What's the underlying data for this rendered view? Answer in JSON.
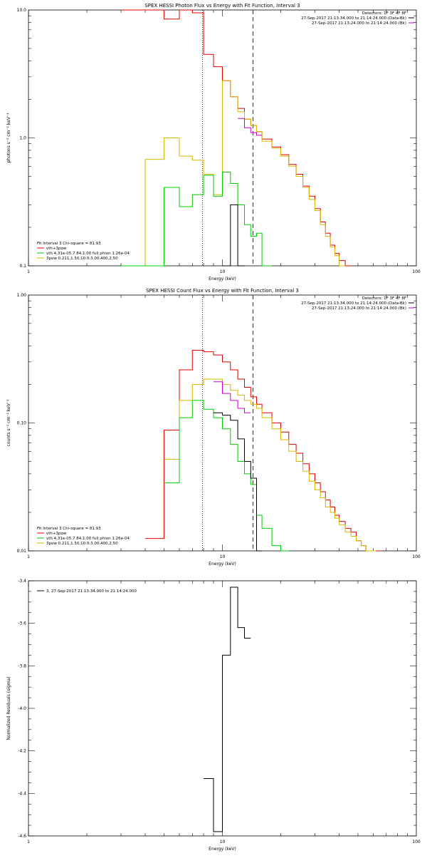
{
  "chart_data": [
    {
      "type": "line",
      "title": "SPEX HESSI Photon Flux vs Energy with Fit Function, Interval 3",
      "xlabel": "Energy (keV)",
      "ylabel": "photons s⁻¹ cm⁻² keV⁻¹",
      "xscale": "log",
      "yscale": "log",
      "xlim": [
        1,
        100
      ],
      "ylim": [
        0.1,
        10
      ],
      "xticks": [
        {
          "v": 1,
          "label": "1"
        },
        {
          "v": 10,
          "label": "10"
        },
        {
          "v": 100,
          "label": "100"
        }
      ],
      "yticks": [
        {
          "v": 0.1,
          "label": "0.1"
        },
        {
          "v": 1,
          "label": "1.0"
        },
        {
          "v": 10,
          "label": "10.0"
        }
      ],
      "header": [
        "Detectors: 1F 3F 4F 8F",
        "27-Sep-2017 21:13:34.000 to 21:14:24.000 (Data-Bk)",
        "27-Sep-2017 21:13:24.000 to 21:14:24.000 (Bk)"
      ],
      "header_colors": [
        "",
        "#000000",
        "#cc00cc"
      ],
      "fit_label": "Fit Interval 3   Chi-square = 81.93",
      "legend": [
        {
          "label": "vth+3pow",
          "color": "#e00000"
        },
        {
          "label": "vth 4.31e-05,7.84,1.00  full phlon 1.26e-04",
          "color": "#00cc00"
        },
        {
          "label": "3pow 0.211,1.50,10.0,3.00,400,2.50",
          "color": "#d8b800"
        }
      ],
      "vlines": [
        {
          "x": 7.9,
          "style": "dotted"
        },
        {
          "x": 14.4,
          "style": "dashed"
        }
      ],
      "edges": [
        1,
        2,
        3,
        4,
        5,
        6,
        7,
        8,
        9,
        10,
        11,
        12,
        13,
        14,
        15,
        16,
        18,
        20,
        22,
        24,
        26,
        28,
        30,
        32,
        34,
        36,
        38,
        40,
        43,
        46,
        49,
        52,
        55,
        58
      ],
      "series": [
        {
          "color": "#e00000",
          "start": 3,
          "values": [
            10,
            10,
            8.5,
            10,
            9.5,
            4.5,
            3.6,
            2.8,
            2.1,
            1.7,
            1.4,
            1.25,
            1.12,
            0.98,
            0.85,
            0.74,
            0.62,
            0.52,
            0.42,
            0.35,
            0.28,
            0.22,
            0.18,
            0.145,
            0.125,
            0.11,
            0.1
          ]
        },
        {
          "color": "#d8b800",
          "start": 3,
          "values": [
            0.1,
            0.68,
            1.0,
            0.72,
            0.67,
            0.52,
            0.36,
            2.8,
            2.1,
            1.6,
            1.4,
            1.25,
            1.12,
            0.94,
            0.83,
            0.72,
            0.6,
            0.5,
            0.41,
            0.33,
            0.27,
            0.21,
            0.17,
            0.14,
            0.12,
            0.1
          ]
        },
        {
          "color": "#00cc00",
          "start": 3,
          "values": [
            0.1,
            0.1,
            0.41,
            0.29,
            0.36,
            0.51,
            0.35,
            0.54,
            0.44,
            0.3,
            0.21,
            0.17,
            0.18,
            0.1
          ]
        },
        {
          "color": "#000000",
          "start": 10,
          "values": [
            0.1,
            0.3,
            0.1
          ]
        },
        {
          "color": "#cc00cc",
          "start": 12,
          "values": [
            1.42,
            1.2,
            1.1,
            1.05
          ]
        }
      ]
    },
    {
      "type": "line",
      "title": "SPEX HESSI Count Flux vs Energy with Fit Function, Interval 3",
      "xlabel": "Energy (keV)",
      "ylabel": "counts s⁻¹ cm⁻² keV⁻¹",
      "xscale": "log",
      "yscale": "log",
      "xlim": [
        1,
        100
      ],
      "ylim": [
        0.01,
        1
      ],
      "xticks": [
        {
          "v": 1,
          "label": "1"
        },
        {
          "v": 10,
          "label": "10"
        },
        {
          "v": 100,
          "label": "100"
        }
      ],
      "yticks": [
        {
          "v": 0.01,
          "label": "0.01"
        },
        {
          "v": 0.1,
          "label": "0.10"
        },
        {
          "v": 1,
          "label": "1.00"
        }
      ],
      "header": [
        "Detectors: 1F 3F 4F 8F",
        "27-Sep-2017 21:13:34.000 to 21:14:24.000 (Data-Bk)",
        "27-Sep-2017 21:13:24.000 to 21:14:24.000 (Bk)"
      ],
      "header_colors": [
        "",
        "#000000",
        "#cc00cc"
      ],
      "fit_label": "Fit Interval 3   Chi-square = 81.93",
      "legend": [
        {
          "label": "vth+3pow",
          "color": "#e00000"
        },
        {
          "label": "vth 4.31e-05,7.84,1.00  full phlon 1.26e-04",
          "color": "#00cc00"
        },
        {
          "label": "3pow 0.211,1.50,10.0,3.00,400,2.50",
          "color": "#d8b800"
        }
      ],
      "vlines": [
        {
          "x": 7.9,
          "style": "dotted"
        },
        {
          "x": 14.4,
          "style": "dashed"
        }
      ],
      "edges": [
        4,
        5,
        6,
        7,
        8,
        9,
        10,
        11,
        12,
        13,
        14,
        15,
        16,
        18,
        20,
        22,
        24,
        26,
        28,
        30,
        32,
        34,
        36,
        38,
        40,
        43,
        46,
        49,
        52,
        55,
        58,
        62,
        66
      ],
      "series": [
        {
          "color": "#e00000",
          "start": 4,
          "values": [
            0.0125,
            0.088,
            0.26,
            0.37,
            0.36,
            0.34,
            0.3,
            0.26,
            0.22,
            0.19,
            0.16,
            0.14,
            0.12,
            0.1,
            0.085,
            0.068,
            0.058,
            0.048,
            0.04,
            0.034,
            0.029,
            0.025,
            0.022,
            0.019,
            0.017,
            0.015,
            0.014,
            0.012,
            0.011,
            0.01,
            0.01,
            0.01
          ]
        },
        {
          "color": "#d8b800",
          "start": 5,
          "values": [
            0.052,
            0.15,
            0.2,
            0.22,
            0.22,
            0.2,
            0.18,
            0.165,
            0.15,
            0.14,
            0.13,
            0.11,
            0.09,
            0.074,
            0.06,
            0.05,
            0.042,
            0.035,
            0.03,
            0.026,
            0.022,
            0.02,
            0.018,
            0.016,
            0.014,
            0.013,
            0.012,
            0.011,
            0.01,
            0.01
          ]
        },
        {
          "color": "#00cc00",
          "start": 5,
          "values": [
            0.034,
            0.11,
            0.15,
            0.128,
            0.11,
            0.09,
            0.068,
            0.05,
            0.04,
            0.033,
            0.019,
            0.015,
            0.011,
            0.01
          ]
        },
        {
          "color": "#000000",
          "start": 9,
          "values": [
            0.12,
            0.115,
            0.105,
            0.075,
            0.05,
            0.037,
            0.01
          ]
        },
        {
          "color": "#cc00cc",
          "start": 9,
          "values": [
            0.21,
            0.17,
            0.15,
            0.13,
            0.12
          ]
        }
      ]
    },
    {
      "type": "line",
      "title": "",
      "xlabel": "Energy (keV)",
      "ylabel": "Normalized Residuals (sigma)",
      "xscale": "log",
      "yscale": "linear",
      "xlim": [
        1,
        100
      ],
      "ylim": [
        -4.6,
        -3.4
      ],
      "xticks": [
        {
          "v": 1,
          "label": "1"
        },
        {
          "v": 10,
          "label": "10"
        },
        {
          "v": 100,
          "label": "100"
        }
      ],
      "yticks": [
        {
          "v": -4.6,
          "label": "-4.6"
        },
        {
          "v": -4.4,
          "label": "-4.4"
        },
        {
          "v": -4.2,
          "label": "-4.2"
        },
        {
          "v": -4.0,
          "label": "-4.0"
        },
        {
          "v": -3.8,
          "label": "-3.8"
        },
        {
          "v": -3.6,
          "label": "-3.6"
        },
        {
          "v": -3.4,
          "label": "-3.4"
        }
      ],
      "legend": [
        {
          "label": "3, 27-Sep-2017 21:13:34.000 to 21:14:24.000",
          "color": "#000000"
        }
      ],
      "edges": [
        8,
        9,
        10,
        11,
        12,
        13,
        14
      ],
      "series": [
        {
          "color": "#000000",
          "start": 8,
          "values": [
            -4.33,
            -4.58,
            -3.75,
            -3.43,
            -3.62,
            -3.67
          ]
        }
      ]
    }
  ]
}
